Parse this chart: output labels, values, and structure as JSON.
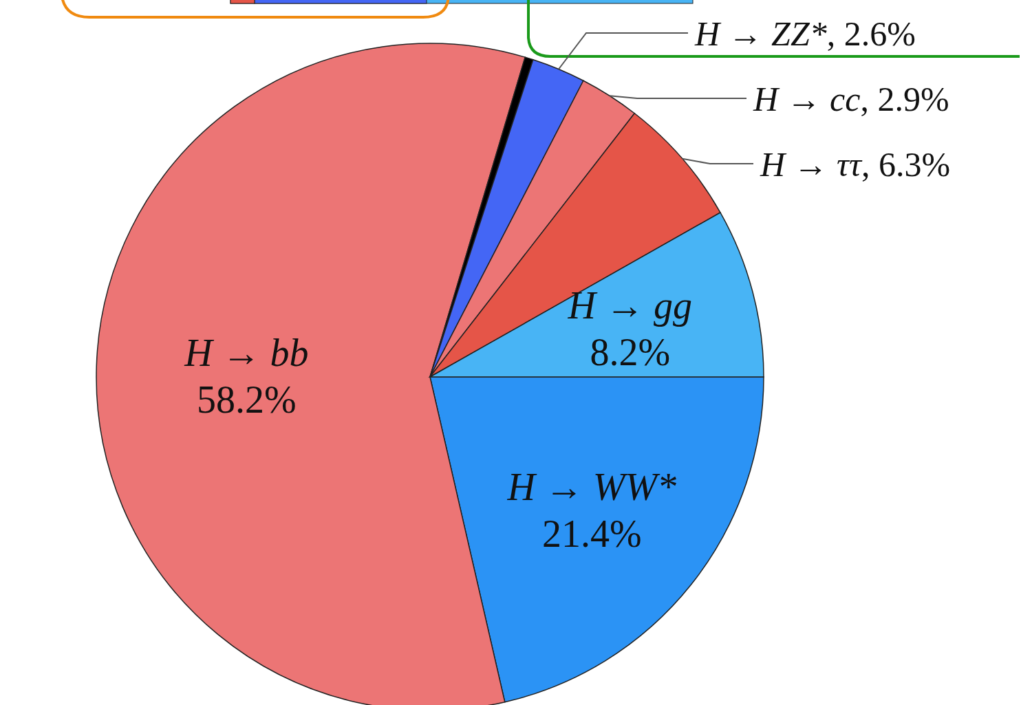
{
  "chart_data": {
    "type": "pie",
    "categories": [
      "H → WW*",
      "H → bb",
      null,
      "H → ZZ*",
      "H → cc",
      "H → ττ",
      "H → gg"
    ],
    "values": [
      21.4,
      58.2,
      0.4,
      2.6,
      2.9,
      6.3,
      8.2
    ],
    "value_labels": [
      "21.4%",
      "58.2%",
      null,
      ", 2.6%",
      ", 2.9%",
      ", 6.3%",
      "8.2%"
    ],
    "colors": [
      "#2b93f5",
      "#ec7575",
      "#000000",
      "#4466f5",
      "#ec7575",
      "#e55548",
      "#48b4f5"
    ]
  }
}
